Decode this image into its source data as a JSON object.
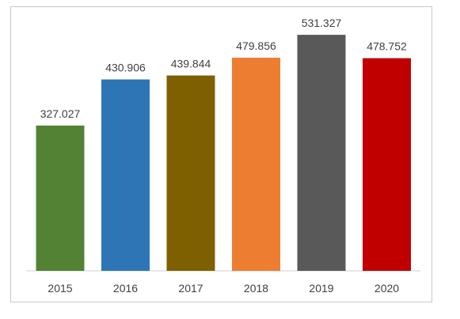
{
  "chart_data": {
    "type": "bar",
    "title": "",
    "xlabel": "",
    "ylabel": "",
    "categories": [
      "2015",
      "2016",
      "2017",
      "2018",
      "2019",
      "2020"
    ],
    "values": [
      327.027,
      430.906,
      439.844,
      479.856,
      531.327,
      478.752
    ],
    "value_labels": [
      "327.027",
      "430.906",
      "439.844",
      "479.856",
      "531.327",
      "478.752"
    ],
    "colors": [
      "#548235",
      "#2e75b6",
      "#7f6000",
      "#ed7d31",
      "#595959",
      "#c00000"
    ],
    "ylim": [
      0,
      560
    ],
    "grid": false,
    "legend": "none"
  }
}
